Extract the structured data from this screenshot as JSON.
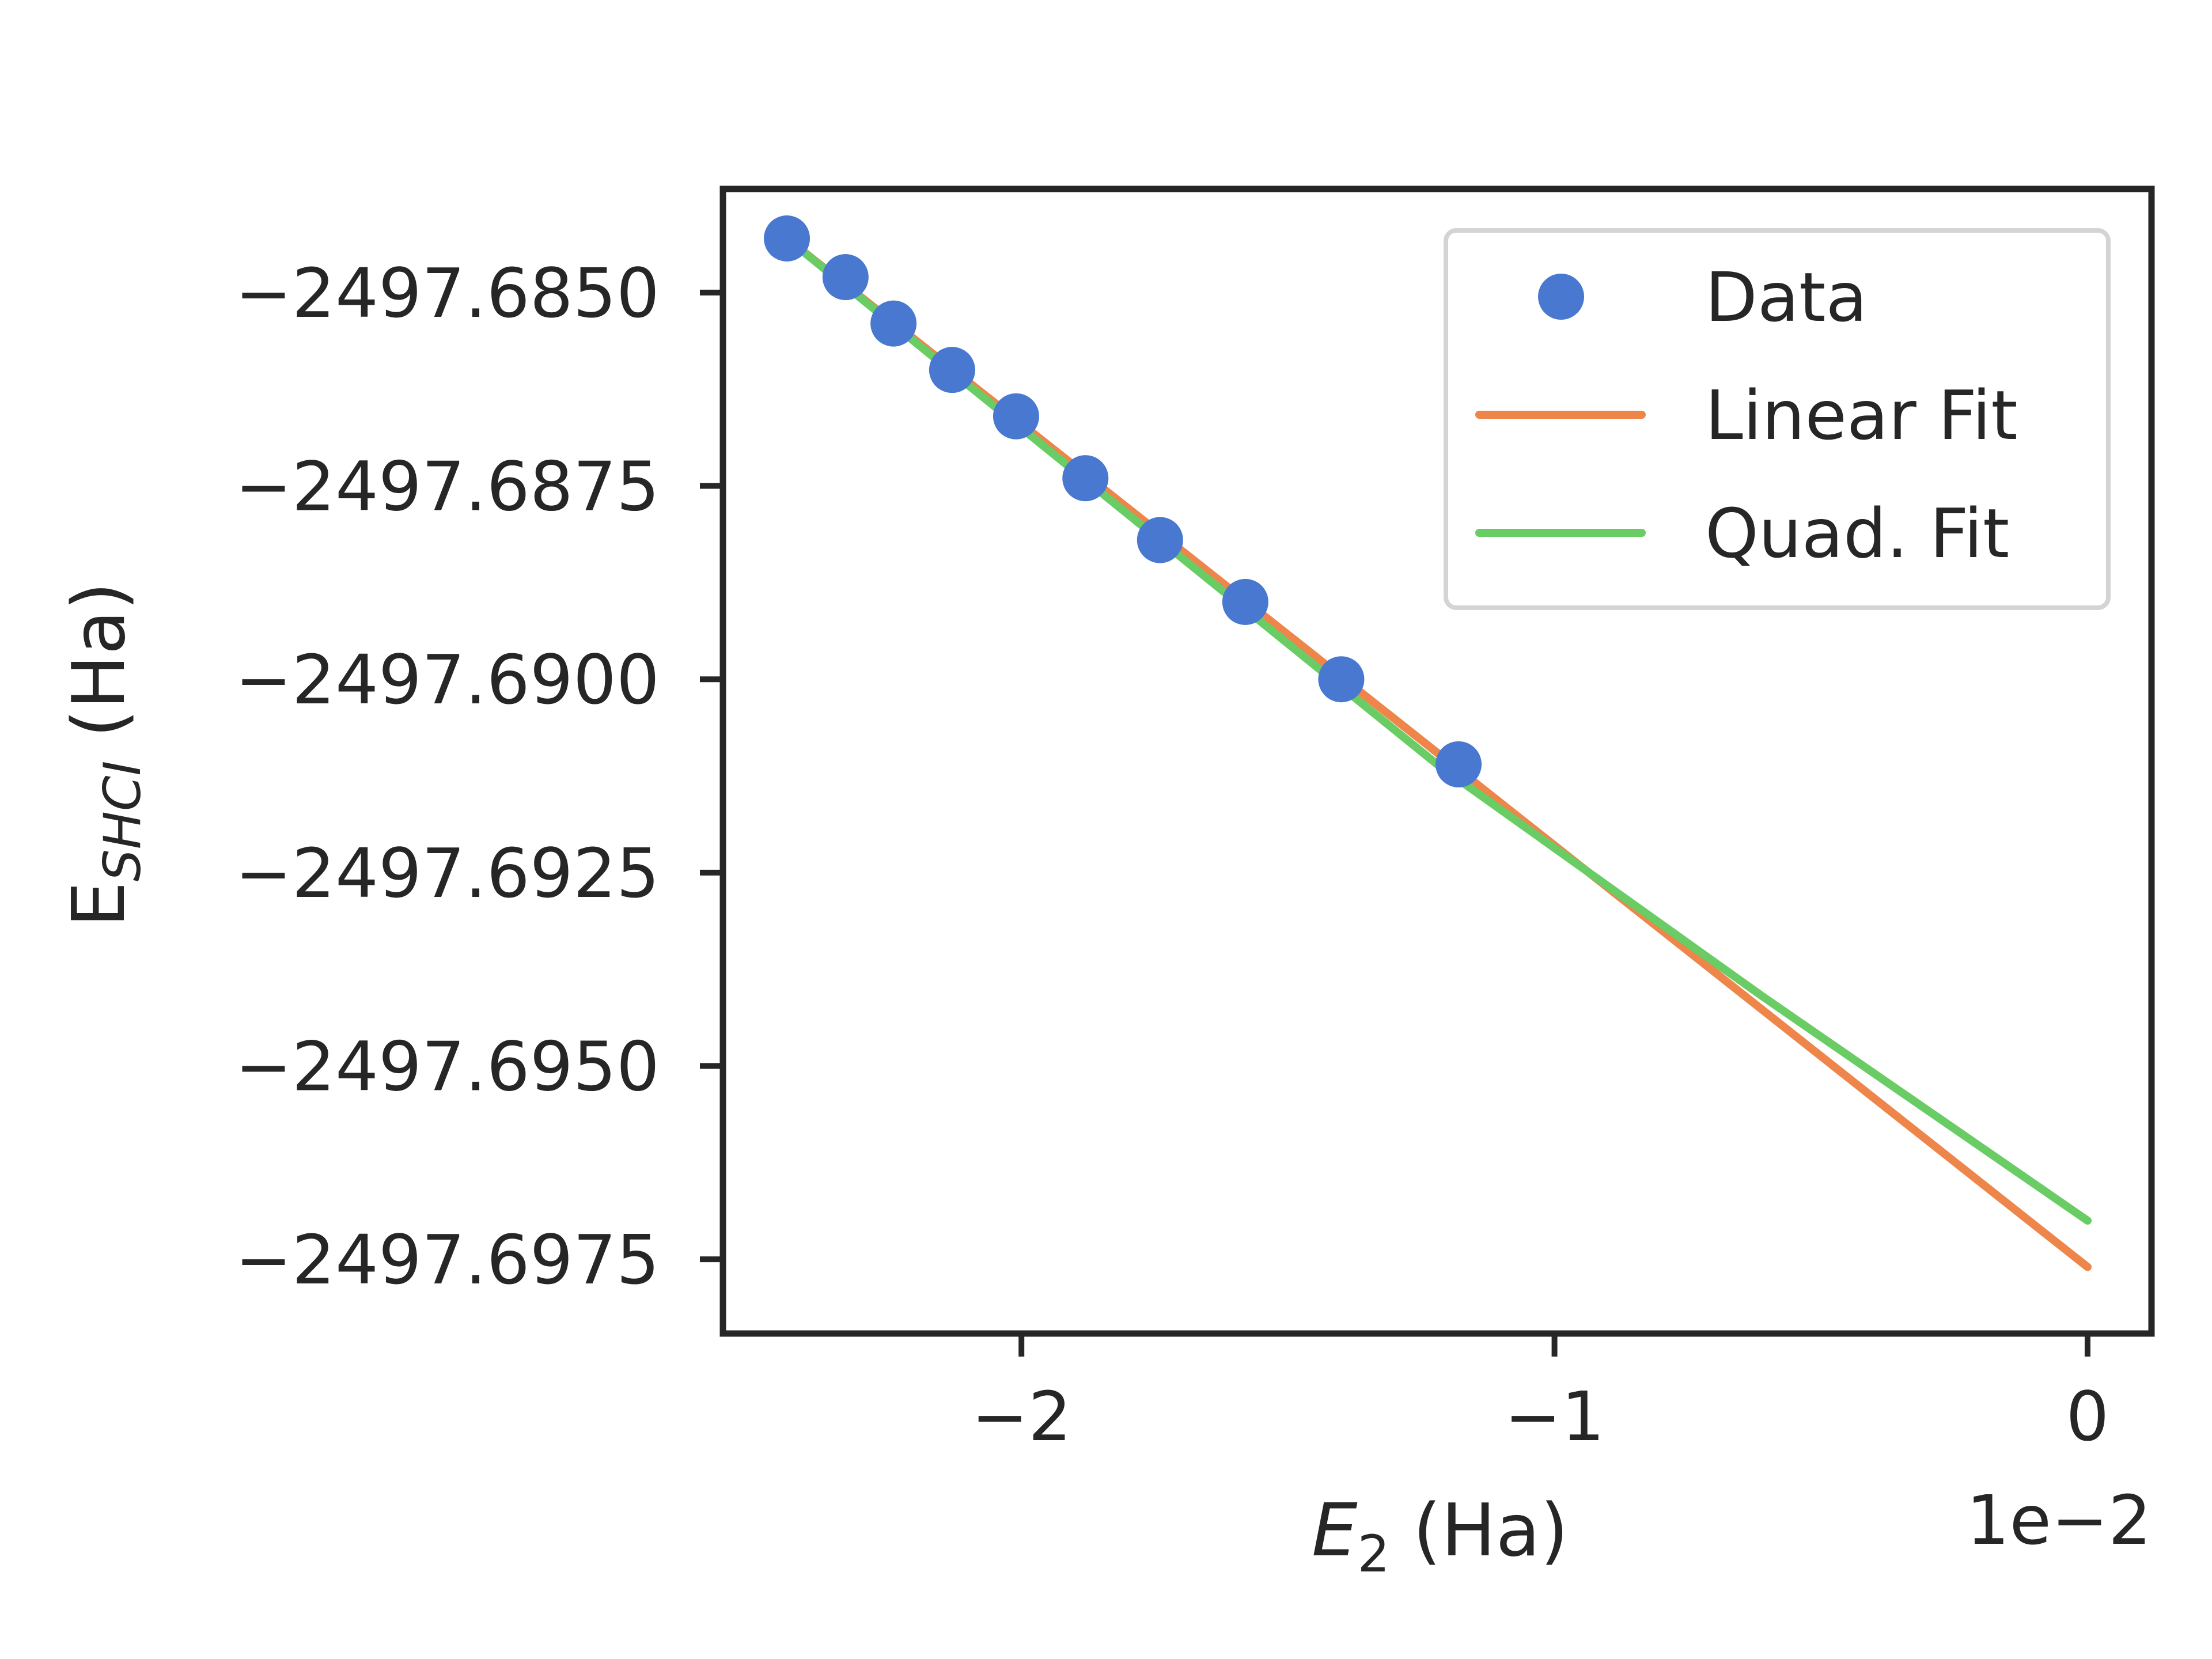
{
  "chart_data": {
    "type": "scatter",
    "xlabel": {
      "main": "E",
      "sub": "2",
      "unit": " (Ha)"
    },
    "ylabel": {
      "main": "E",
      "sub": "SHCI",
      "unit": " (Ha)"
    },
    "x_offset_label": "1e−2",
    "xlim": [
      -0.0256,
      0.0012
    ],
    "ylim": [
      -2497.69846,
      -2497.68366
    ],
    "x_ticks": [
      {
        "value": -0.02,
        "label": "−2"
      },
      {
        "value": -0.01,
        "label": "−1"
      },
      {
        "value": 0.0,
        "label": "0"
      }
    ],
    "y_ticks": [
      {
        "value": -2497.685,
        "label": "−2497.6850"
      },
      {
        "value": -2497.6875,
        "label": "−2497.6875"
      },
      {
        "value": -2497.69,
        "label": "−2497.6900"
      },
      {
        "value": -2497.6925,
        "label": "−2497.6925"
      },
      {
        "value": -2497.695,
        "label": "−2497.6950"
      },
      {
        "value": -2497.6975,
        "label": "−2497.6975"
      }
    ],
    "grid": false,
    "legend_position": "upper right",
    "series": [
      {
        "name": "Data",
        "kind": "scatter",
        "color": "#4878d0",
        "x": [
          -0.0244,
          -0.0233,
          -0.0224,
          -0.0213,
          -0.0201,
          -0.0188,
          -0.0174,
          -0.0158,
          -0.014,
          -0.0118
        ],
        "y": [
          -2497.6843,
          -2497.6848,
          -2497.6854,
          -2497.686,
          -2497.6866,
          -2497.6874,
          -2497.6882,
          -2497.689,
          -2497.69,
          -2497.6911
        ]
      },
      {
        "name": "Linear Fit",
        "kind": "line",
        "color": "#ee854a",
        "x": [
          -0.0244,
          0.0
        ],
        "y": [
          -2497.6843,
          -2497.6976
        ]
      },
      {
        "name": "Quad. Fit",
        "kind": "line",
        "color": "#6acc64",
        "x": [
          -0.0244,
          -0.0183,
          -0.0122,
          -0.0061,
          0.0
        ],
        "y": [
          -2497.6843,
          -2497.6877,
          -2497.6911,
          -2497.6941,
          -2497.697
        ]
      }
    ]
  }
}
